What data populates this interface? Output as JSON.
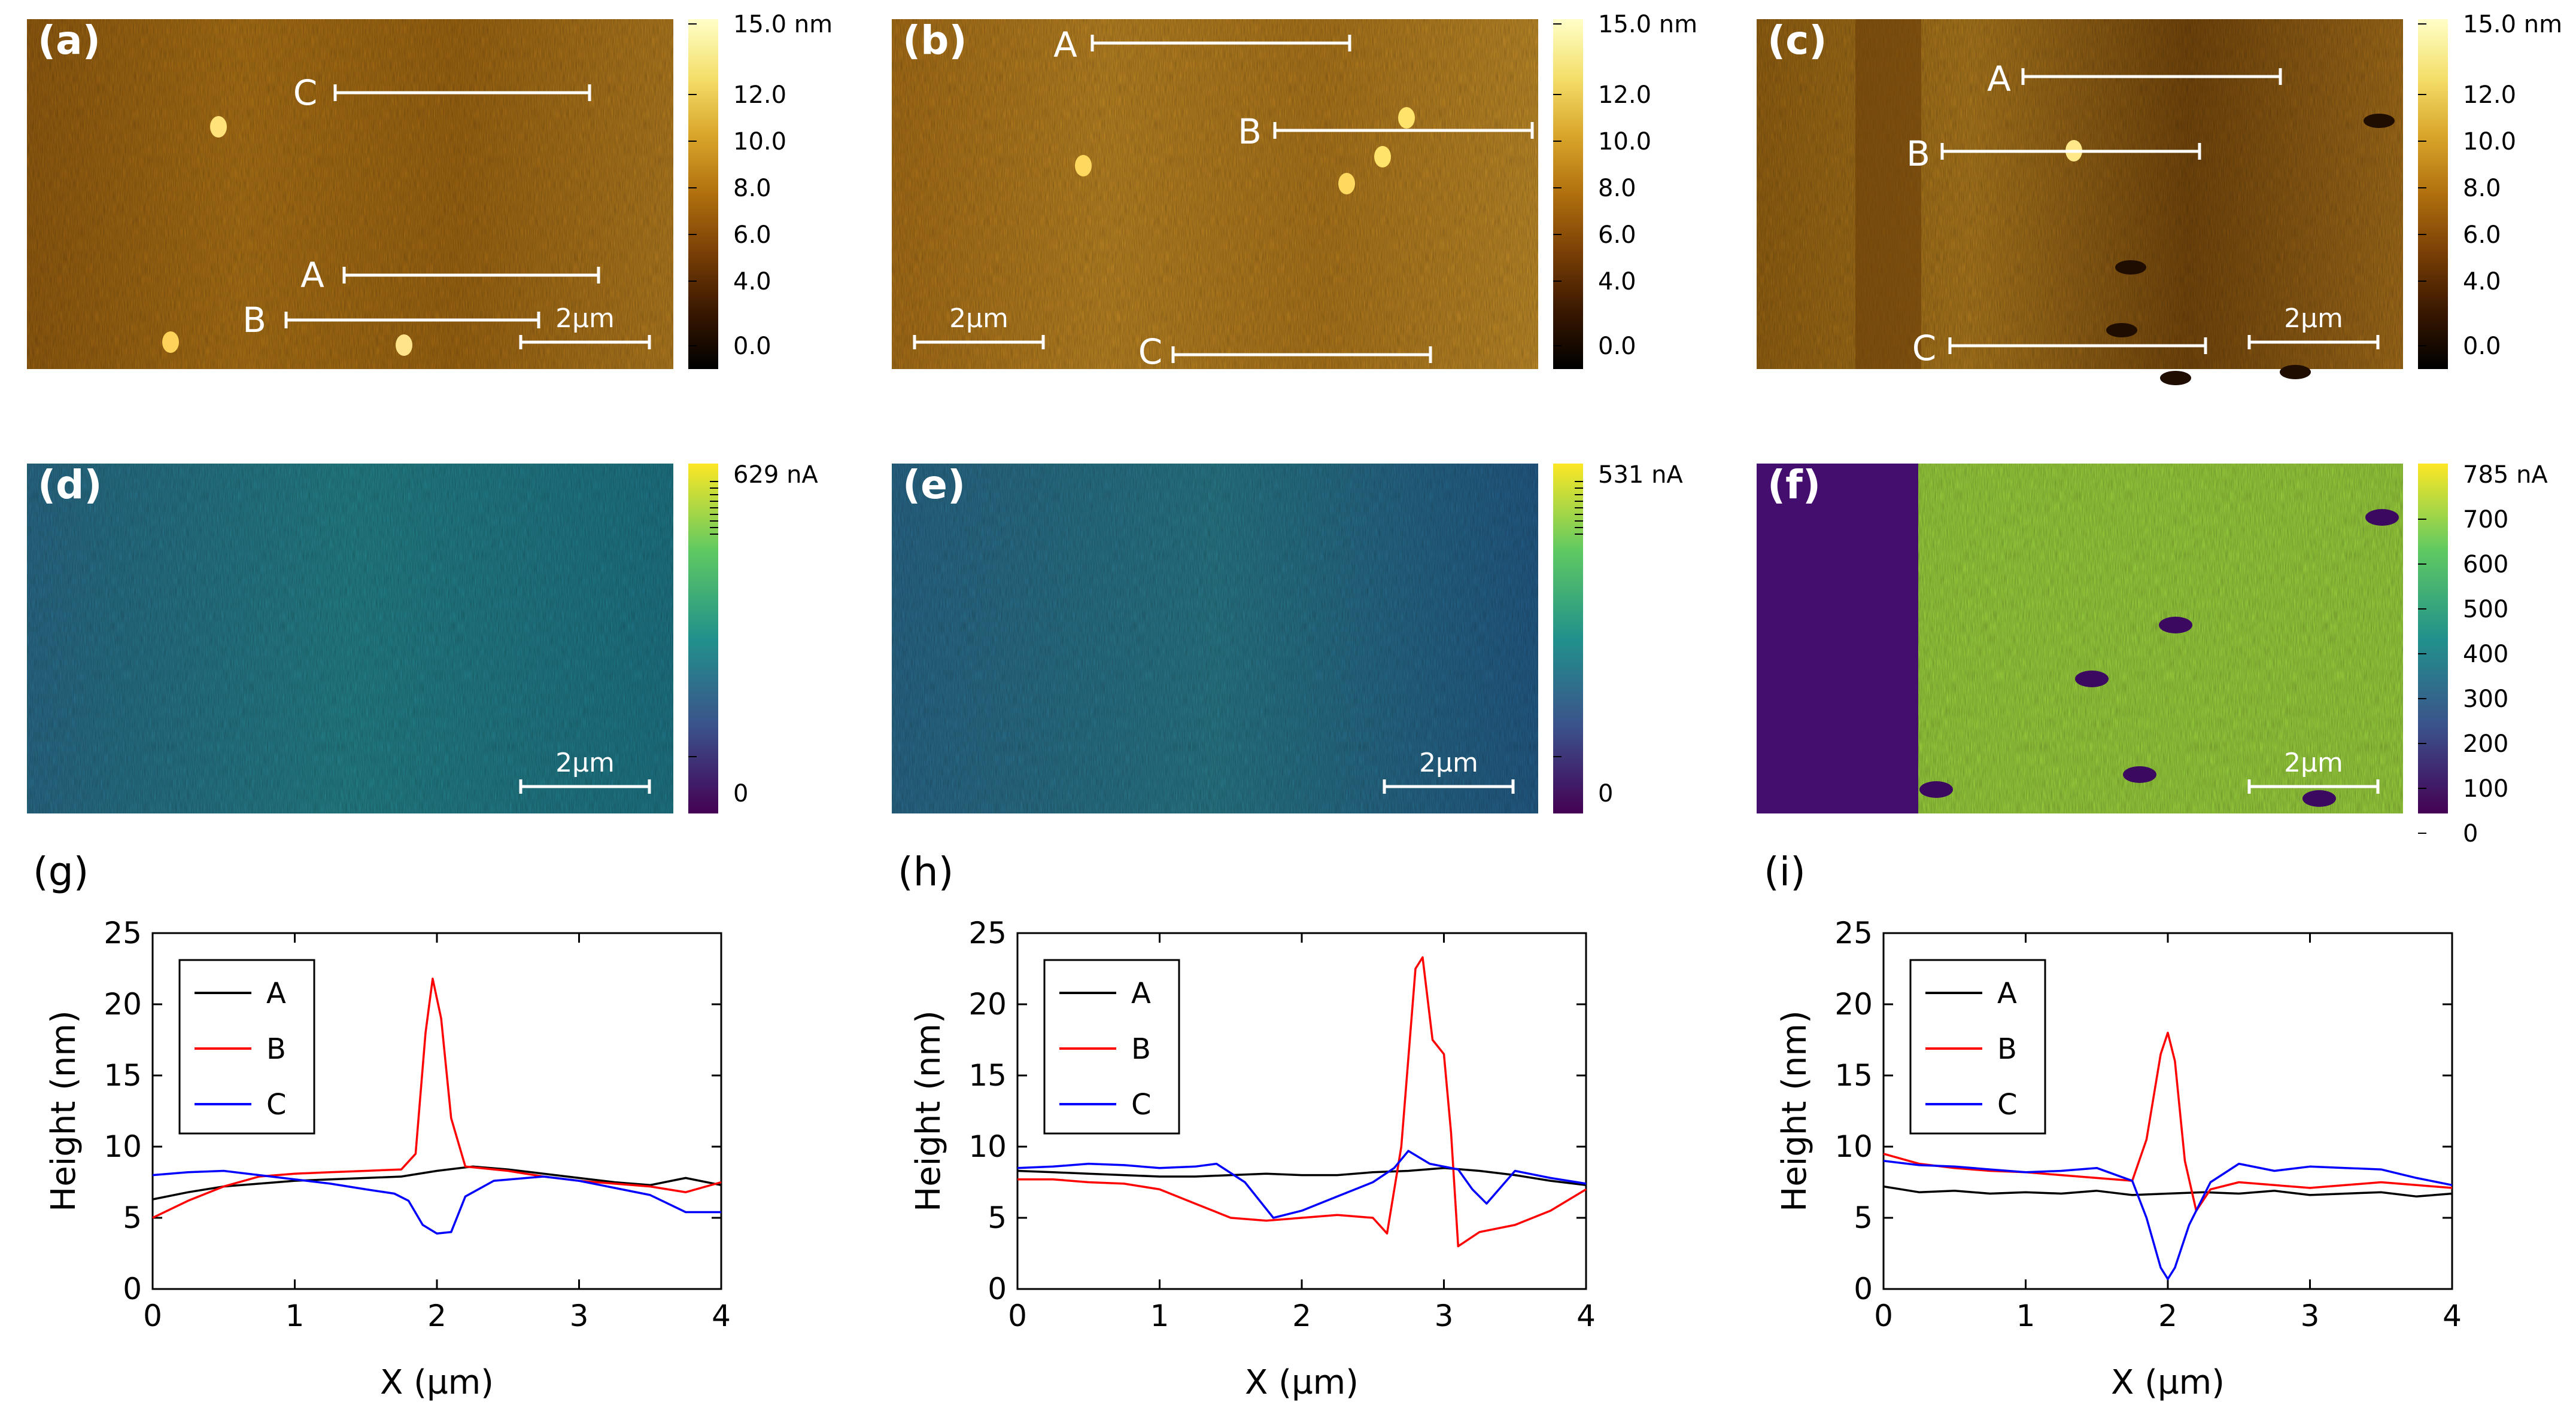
{
  "figure": {
    "topo_panels": [
      {
        "label": "(a)",
        "lines": [
          {
            "name": "C"
          },
          {
            "name": "A"
          },
          {
            "name": "B"
          }
        ],
        "scalebar": "2µm"
      },
      {
        "label": "(b)",
        "lines": [
          {
            "name": "A"
          },
          {
            "name": "B"
          },
          {
            "name": "C"
          }
        ],
        "scalebar": "2µm"
      },
      {
        "label": "(c)",
        "lines": [
          {
            "name": "A"
          },
          {
            "name": "B"
          },
          {
            "name": "C"
          }
        ],
        "scalebar": "2µm"
      }
    ],
    "topo_colorbar": {
      "unit_label": "15.0 nm",
      "ticks": [
        "12.0",
        "10.0",
        "8.0",
        "6.0",
        "4.0",
        "0.0"
      ],
      "stops": [
        "#000000",
        "#3a1800",
        "#7a3f06",
        "#b0700e",
        "#d9a52a",
        "#f4df6a",
        "#ffffc8"
      ]
    },
    "current_panels": [
      {
        "label": "(d)",
        "scalebar": "2µm",
        "colorbar": {
          "top_label": "629 nA",
          "ticks": [
            "0"
          ]
        }
      },
      {
        "label": "(e)",
        "scalebar": "2µm",
        "colorbar": {
          "top_label": "531 nA",
          "ticks": [
            "0"
          ]
        }
      },
      {
        "label": "(f)",
        "scalebar": "2µm",
        "colorbar": {
          "top_label": "785 nA",
          "ticks": [
            "700",
            "600",
            "500",
            "400",
            "300",
            "200",
            "100",
            "0"
          ]
        }
      }
    ],
    "viridis_stops": [
      "#440154",
      "#3b528b",
      "#21918c",
      "#5ec962",
      "#fde725"
    ]
  },
  "chart_data": [
    {
      "type": "line",
      "panel": "(g)",
      "xlabel": "X (µm)",
      "ylabel": "Height (nm)",
      "xlim": [
        0,
        4
      ],
      "ylim": [
        0,
        25
      ],
      "xticks": [
        "0",
        "1",
        "2",
        "3",
        "4"
      ],
      "yticks": [
        "0",
        "5",
        "10",
        "15",
        "20",
        "25"
      ],
      "legend": "top-left",
      "series": [
        {
          "name": "A",
          "color": "#000000",
          "x": [
            0,
            0.25,
            0.5,
            0.75,
            1,
            1.25,
            1.5,
            1.75,
            2,
            2.25,
            2.5,
            2.75,
            3,
            3.25,
            3.5,
            3.75,
            4
          ],
          "y": [
            6.3,
            6.8,
            7.2,
            7.4,
            7.6,
            7.7,
            7.8,
            7.9,
            8.3,
            8.6,
            8.4,
            8.1,
            7.8,
            7.5,
            7.3,
            7.8,
            7.3
          ]
        },
        {
          "name": "B",
          "color": "#ff0000",
          "x": [
            0,
            0.25,
            0.5,
            0.75,
            1,
            1.25,
            1.5,
            1.75,
            1.85,
            1.92,
            1.97,
            2.03,
            2.1,
            2.2,
            2.5,
            2.75,
            3,
            3.25,
            3.5,
            3.75,
            4
          ],
          "y": [
            5.0,
            6.2,
            7.2,
            7.9,
            8.1,
            8.2,
            8.3,
            8.4,
            9.5,
            18.0,
            21.8,
            19.0,
            12.0,
            8.6,
            8.3,
            7.9,
            7.6,
            7.4,
            7.2,
            6.8,
            7.5
          ]
        },
        {
          "name": "C",
          "color": "#0000ff",
          "x": [
            0,
            0.25,
            0.5,
            0.75,
            1,
            1.25,
            1.5,
            1.7,
            1.8,
            1.9,
            2.0,
            2.1,
            2.2,
            2.4,
            2.75,
            3,
            3.25,
            3.5,
            3.75,
            4
          ],
          "y": [
            8.0,
            8.2,
            8.3,
            8.0,
            7.7,
            7.4,
            7.0,
            6.7,
            6.2,
            4.5,
            3.9,
            4.0,
            6.5,
            7.6,
            7.9,
            7.6,
            7.1,
            6.6,
            5.4,
            5.4
          ]
        }
      ]
    },
    {
      "type": "line",
      "panel": "(h)",
      "xlabel": "X (µm)",
      "ylabel": "Height (nm)",
      "xlim": [
        0,
        4
      ],
      "ylim": [
        0,
        25
      ],
      "xticks": [
        "0",
        "1",
        "2",
        "3",
        "4"
      ],
      "yticks": [
        "0",
        "5",
        "10",
        "15",
        "20",
        "25"
      ],
      "legend": "top-left",
      "series": [
        {
          "name": "A",
          "color": "#000000",
          "x": [
            0,
            0.25,
            0.5,
            0.75,
            1,
            1.25,
            1.5,
            1.75,
            2,
            2.25,
            2.5,
            2.75,
            3,
            3.25,
            3.5,
            3.75,
            4
          ],
          "y": [
            8.3,
            8.2,
            8.1,
            8.0,
            7.9,
            7.9,
            8.0,
            8.1,
            8.0,
            8.0,
            8.2,
            8.3,
            8.5,
            8.3,
            8.0,
            7.6,
            7.3
          ]
        },
        {
          "name": "B",
          "color": "#ff0000",
          "x": [
            0,
            0.25,
            0.5,
            0.75,
            1,
            1.25,
            1.5,
            1.75,
            2,
            2.25,
            2.5,
            2.6,
            2.7,
            2.8,
            2.85,
            2.92,
            3.0,
            3.05,
            3.1,
            3.25,
            3.5,
            3.75,
            4
          ],
          "y": [
            7.7,
            7.7,
            7.5,
            7.4,
            7.0,
            6.0,
            5.0,
            4.8,
            5.0,
            5.2,
            5.0,
            3.9,
            10.0,
            22.5,
            23.3,
            17.5,
            16.5,
            11.0,
            3.0,
            4.0,
            4.5,
            5.5,
            7.0
          ]
        },
        {
          "name": "C",
          "color": "#0000ff",
          "x": [
            0,
            0.25,
            0.5,
            0.75,
            1,
            1.25,
            1.4,
            1.6,
            1.8,
            2.0,
            2.25,
            2.5,
            2.65,
            2.75,
            2.9,
            3.1,
            3.2,
            3.3,
            3.5,
            3.75,
            4
          ],
          "y": [
            8.5,
            8.6,
            8.8,
            8.7,
            8.5,
            8.6,
            8.8,
            7.5,
            5.0,
            5.5,
            6.5,
            7.5,
            8.5,
            9.7,
            8.8,
            8.4,
            7.0,
            6.0,
            8.3,
            7.8,
            7.4
          ]
        }
      ]
    },
    {
      "type": "line",
      "panel": "(i)",
      "xlabel": "X (µm)",
      "ylabel": "Height (nm)",
      "xlim": [
        0,
        4
      ],
      "ylim": [
        0,
        25
      ],
      "xticks": [
        "0",
        "1",
        "2",
        "3",
        "4"
      ],
      "yticks": [
        "0",
        "5",
        "10",
        "15",
        "20",
        "25"
      ],
      "legend": "top-left",
      "series": [
        {
          "name": "A",
          "color": "#000000",
          "x": [
            0,
            0.25,
            0.5,
            0.75,
            1,
            1.25,
            1.5,
            1.75,
            2,
            2.25,
            2.5,
            2.75,
            3,
            3.25,
            3.5,
            3.75,
            4
          ],
          "y": [
            7.2,
            6.8,
            6.9,
            6.7,
            6.8,
            6.7,
            6.9,
            6.6,
            6.7,
            6.8,
            6.7,
            6.9,
            6.6,
            6.7,
            6.8,
            6.5,
            6.7
          ]
        },
        {
          "name": "B",
          "color": "#ff0000",
          "x": [
            0,
            0.25,
            0.5,
            0.75,
            1,
            1.25,
            1.5,
            1.75,
            1.85,
            1.95,
            2.0,
            2.05,
            2.12,
            2.2,
            2.3,
            2.5,
            2.75,
            3,
            3.25,
            3.5,
            3.75,
            4
          ],
          "y": [
            9.5,
            8.8,
            8.5,
            8.3,
            8.2,
            8.0,
            7.8,
            7.6,
            10.5,
            16.5,
            18.0,
            16.0,
            9.0,
            5.5,
            7.0,
            7.5,
            7.3,
            7.1,
            7.3,
            7.5,
            7.3,
            7.1
          ]
        },
        {
          "name": "C",
          "color": "#0000ff",
          "x": [
            0,
            0.25,
            0.5,
            0.75,
            1,
            1.25,
            1.5,
            1.75,
            1.85,
            1.95,
            2.0,
            2.05,
            2.15,
            2.3,
            2.5,
            2.75,
            3,
            3.25,
            3.5,
            3.75,
            4
          ],
          "y": [
            9.0,
            8.7,
            8.6,
            8.4,
            8.2,
            8.3,
            8.5,
            7.6,
            5.0,
            1.5,
            0.7,
            1.5,
            4.5,
            7.5,
            8.8,
            8.3,
            8.6,
            8.5,
            8.4,
            7.8,
            7.3
          ]
        }
      ]
    }
  ]
}
